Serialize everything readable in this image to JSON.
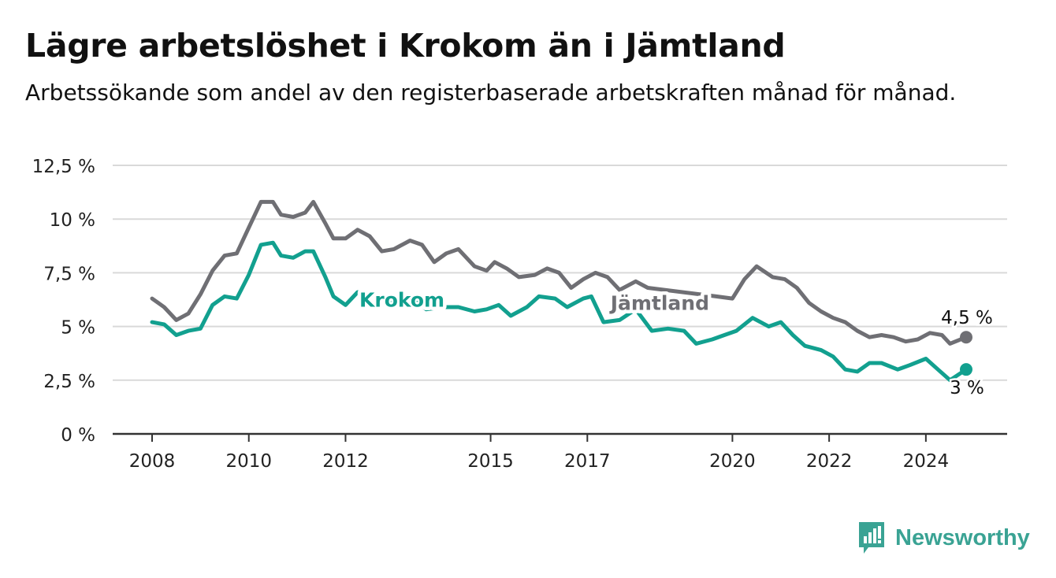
{
  "title": "Lägre arbetslöshet i Krokom än i Jämtland",
  "subtitle": "Arbetssökande som andel av den registerbaserade arbetskraften månad för månad.",
  "brand": {
    "name": "Newsworthy",
    "color": "#3aa394"
  },
  "chart_data": {
    "type": "line",
    "x_start": "2008-01",
    "x_end": "2024-11",
    "x_ticks": [
      "2008",
      "2010",
      "2012",
      "2015",
      "2017",
      "2020",
      "2022",
      "2024"
    ],
    "x_tick_dates": [
      "2008-01",
      "2010-01",
      "2012-01",
      "2015-01",
      "2017-01",
      "2020-01",
      "2022-01",
      "2024-01"
    ],
    "y_ticks": [
      "0 %",
      "2,5 %",
      "5 %",
      "7,5 %",
      "10 %",
      "12,5 %"
    ],
    "y_tick_values": [
      0,
      2.5,
      5,
      7.5,
      10,
      12.5
    ],
    "ylim": [
      0,
      12.5
    ],
    "grid": true,
    "series": [
      {
        "name": "Jämtland",
        "color": "#6f6f74",
        "end_label": "4,5 %",
        "points": [
          [
            "2008-01",
            6.3
          ],
          [
            "2008-04",
            5.9
          ],
          [
            "2008-07",
            5.3
          ],
          [
            "2008-10",
            5.6
          ],
          [
            "2009-01",
            6.5
          ],
          [
            "2009-04",
            7.6
          ],
          [
            "2009-07",
            8.3
          ],
          [
            "2009-10",
            8.4
          ],
          [
            "2010-01",
            9.6
          ],
          [
            "2010-04",
            10.8
          ],
          [
            "2010-07",
            10.8
          ],
          [
            "2010-09",
            10.2
          ],
          [
            "2010-12",
            10.1
          ],
          [
            "2011-03",
            10.3
          ],
          [
            "2011-05",
            10.8
          ],
          [
            "2011-08",
            9.8
          ],
          [
            "2011-10",
            9.1
          ],
          [
            "2012-01",
            9.1
          ],
          [
            "2012-04",
            9.5
          ],
          [
            "2012-07",
            9.2
          ],
          [
            "2012-10",
            8.5
          ],
          [
            "2013-01",
            8.6
          ],
          [
            "2013-05",
            9.0
          ],
          [
            "2013-08",
            8.8
          ],
          [
            "2013-11",
            8.0
          ],
          [
            "2014-02",
            8.4
          ],
          [
            "2014-05",
            8.6
          ],
          [
            "2014-09",
            7.8
          ],
          [
            "2014-12",
            7.6
          ],
          [
            "2015-02",
            8.0
          ],
          [
            "2015-05",
            7.7
          ],
          [
            "2015-08",
            7.3
          ],
          [
            "2015-12",
            7.4
          ],
          [
            "2016-03",
            7.7
          ],
          [
            "2016-06",
            7.5
          ],
          [
            "2016-09",
            6.8
          ],
          [
            "2016-12",
            7.2
          ],
          [
            "2017-03",
            7.5
          ],
          [
            "2017-06",
            7.3
          ],
          [
            "2017-09",
            6.7
          ],
          [
            "2018-01",
            7.1
          ],
          [
            "2018-04",
            6.8
          ],
          [
            "2019-09",
            6.4
          ],
          [
            "2020-01",
            6.3
          ],
          [
            "2020-04",
            7.2
          ],
          [
            "2020-07",
            7.8
          ],
          [
            "2020-11",
            7.3
          ],
          [
            "2021-02",
            7.2
          ],
          [
            "2021-05",
            6.8
          ],
          [
            "2021-08",
            6.1
          ],
          [
            "2021-11",
            5.7
          ],
          [
            "2022-02",
            5.4
          ],
          [
            "2022-05",
            5.2
          ],
          [
            "2022-08",
            4.8
          ],
          [
            "2022-11",
            4.5
          ],
          [
            "2023-02",
            4.6
          ],
          [
            "2023-05",
            4.5
          ],
          [
            "2023-08",
            4.3
          ],
          [
            "2023-11",
            4.4
          ],
          [
            "2024-02",
            4.7
          ],
          [
            "2024-05",
            4.6
          ],
          [
            "2024-07",
            4.2
          ],
          [
            "2024-11",
            4.5
          ]
        ]
      },
      {
        "name": "Krokom",
        "color": "#12a08f",
        "end_label": "3 %",
        "points": [
          [
            "2008-01",
            5.2
          ],
          [
            "2008-04",
            5.1
          ],
          [
            "2008-07",
            4.6
          ],
          [
            "2008-10",
            4.8
          ],
          [
            "2009-01",
            4.9
          ],
          [
            "2009-04",
            6.0
          ],
          [
            "2009-07",
            6.4
          ],
          [
            "2009-10",
            6.3
          ],
          [
            "2010-01",
            7.4
          ],
          [
            "2010-04",
            8.8
          ],
          [
            "2010-07",
            8.9
          ],
          [
            "2010-09",
            8.3
          ],
          [
            "2010-12",
            8.2
          ],
          [
            "2011-03",
            8.5
          ],
          [
            "2011-05",
            8.5
          ],
          [
            "2011-08",
            7.3
          ],
          [
            "2011-10",
            6.4
          ],
          [
            "2012-01",
            6.0
          ],
          [
            "2012-04",
            6.6
          ],
          [
            "2012-07",
            6.3
          ],
          [
            "2012-10",
            6.0
          ],
          [
            "2013-01",
            6.1
          ],
          [
            "2013-06",
            6.3
          ],
          [
            "2013-09",
            5.8
          ],
          [
            "2014-01",
            5.9
          ],
          [
            "2014-05",
            5.9
          ],
          [
            "2014-09",
            5.7
          ],
          [
            "2014-12",
            5.8
          ],
          [
            "2015-03",
            6.0
          ],
          [
            "2015-06",
            5.5
          ],
          [
            "2015-10",
            5.9
          ],
          [
            "2016-01",
            6.4
          ],
          [
            "2016-05",
            6.3
          ],
          [
            "2016-08",
            5.9
          ],
          [
            "2016-12",
            6.3
          ],
          [
            "2017-02",
            6.4
          ],
          [
            "2017-05",
            5.2
          ],
          [
            "2017-09",
            5.3
          ],
          [
            "2018-01",
            5.8
          ],
          [
            "2018-05",
            4.8
          ],
          [
            "2018-09",
            4.9
          ],
          [
            "2019-01",
            4.8
          ],
          [
            "2019-04",
            4.2
          ],
          [
            "2019-08",
            4.4
          ],
          [
            "2019-11",
            4.6
          ],
          [
            "2020-02",
            4.8
          ],
          [
            "2020-06",
            5.4
          ],
          [
            "2020-10",
            5.0
          ],
          [
            "2021-01",
            5.2
          ],
          [
            "2021-04",
            4.6
          ],
          [
            "2021-07",
            4.1
          ],
          [
            "2021-11",
            3.9
          ],
          [
            "2022-02",
            3.6
          ],
          [
            "2022-05",
            3.0
          ],
          [
            "2022-08",
            2.9
          ],
          [
            "2022-11",
            3.3
          ],
          [
            "2023-02",
            3.3
          ],
          [
            "2023-06",
            3.0
          ],
          [
            "2023-09",
            3.2
          ],
          [
            "2024-01",
            3.5
          ],
          [
            "2024-04",
            3.0
          ],
          [
            "2024-07",
            2.5
          ],
          [
            "2024-11",
            3.0
          ]
        ]
      }
    ],
    "inline_labels": [
      {
        "series": "Krokom",
        "text": "Krokom",
        "date": "2013-03",
        "value": 6.25
      },
      {
        "series": "Jämtland",
        "text": "Jämtland",
        "date": "2018-07",
        "value": 6.1
      }
    ]
  }
}
